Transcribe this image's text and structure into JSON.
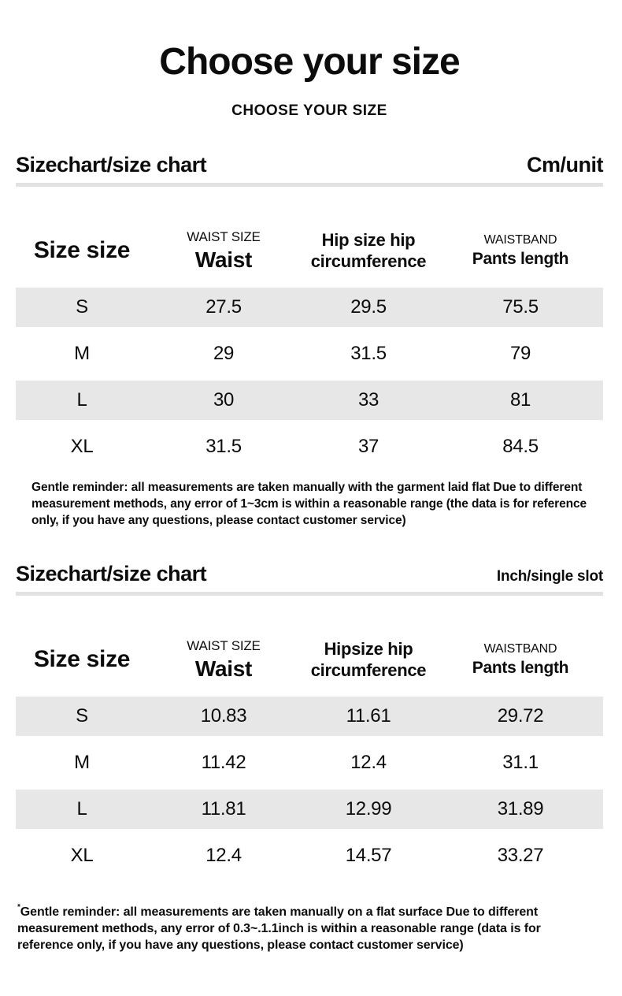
{
  "header": {
    "title": "Choose your size",
    "subtitle": "CHOOSE YOUR SIZE"
  },
  "sections": [
    {
      "heading": "Sizechart/size chart",
      "unit": "Cm/unit",
      "columns": [
        {
          "caption": "",
          "label": "Size size"
        },
        {
          "caption": "WAIST SIZE",
          "label": "Waist"
        },
        {
          "caption": "",
          "label": "Hip size hip circumference"
        },
        {
          "caption": "WAISTBAND",
          "label": "Pants length"
        }
      ],
      "rows": [
        {
          "size": "S",
          "waist": "27.5",
          "hip": "29.5",
          "length": "75.5"
        },
        {
          "size": "M",
          "waist": "29",
          "hip": "31.5",
          "length": "79"
        },
        {
          "size": "L",
          "waist": "30",
          "hip": "33",
          "length": "81"
        },
        {
          "size": "XL",
          "waist": "31.5",
          "hip": "37",
          "length": "84.5"
        }
      ],
      "note": "Gentle reminder: all measurements are taken manually with the garment laid flat Due to different measurement methods, any error of 1~3cm is within a reasonable range (the data is for reference only, if you have any questions, please contact customer service)"
    },
    {
      "heading": "Sizechart/size chart",
      "unit": "Inch/single slot",
      "columns": [
        {
          "caption": "",
          "label": "Size size"
        },
        {
          "caption": "WAIST SIZE",
          "label": "Waist"
        },
        {
          "caption": "",
          "label": "Hipsize hip circumference"
        },
        {
          "caption": "WAISTBAND",
          "label": "Pants length"
        }
      ],
      "rows": [
        {
          "size": "S",
          "waist": "10.83",
          "hip": "11.61",
          "length": "29.72"
        },
        {
          "size": "M",
          "waist": "11.42",
          "hip": "12.4",
          "length": "31.1"
        },
        {
          "size": "L",
          "waist": "11.81",
          "hip": "12.99",
          "length": "31.89"
        },
        {
          "size": "XL",
          "waist": "12.4",
          "hip": "14.57",
          "length": "33.27"
        }
      ],
      "note_marker": "*",
      "note": "Gentle reminder: all measurements are taken manually on a flat surface Due to different measurement methods, any error of 0.3~.1.1inch is within a reasonable range (data is for reference only, if you have any questions, please contact customer service)"
    }
  ]
}
